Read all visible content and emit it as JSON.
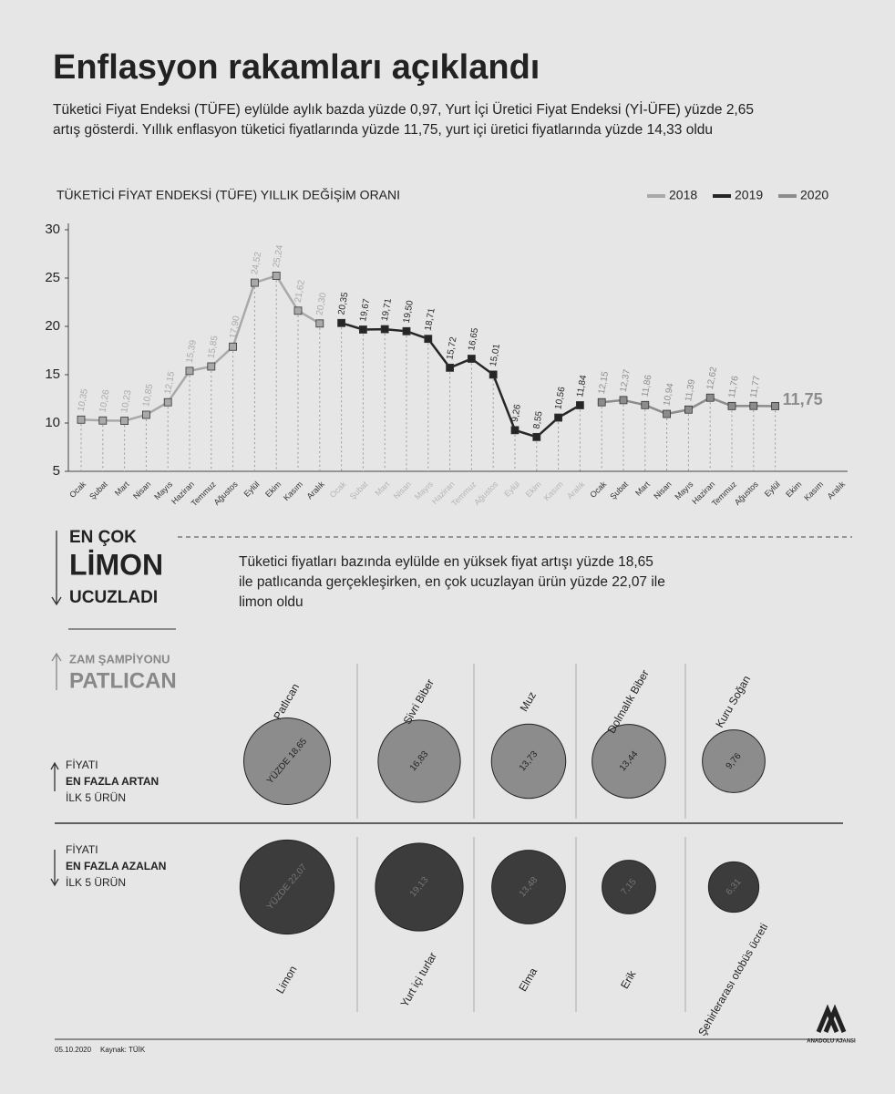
{
  "title": "Enflasyon rakamları açıklandı",
  "subtitle": "Tüketici Fiyat Endeksi (TÜFE) eylülde aylık bazda yüzde 0,97, Yurt İçi Üretici Fiyat Endeksi (Yİ-ÜFE) yüzde 2,65 artış gösterdi. Yıllık enflasyon tüketici fiyatlarında yüzde 11,75, yurt içi üretici fiyatlarında yüzde 14,33 oldu",
  "callout": {
    "line1": "EN ÇOK",
    "line2": "LİMON",
    "line3": "UCUZLADI",
    "text": "Tüketici fiyatları bazında eylülde en yüksek fiyat artışı yüzde 18,65 ile patlıcanda gerçekleşirken, en çok ucuzlayan ürün yüzde 22,07 ile limon oldu",
    "sub1": "ZAM ŞAMPİYONU",
    "sub2": "PATLICAN"
  },
  "footer": {
    "date": "05.10.2020",
    "source": "Kaynak: TÜİK",
    "logo": "ANADOLU AJANSI"
  },
  "chart_data": [
    {
      "type": "line",
      "title": "TÜKETİCİ FİYAT ENDEKSİ (TÜFE) YILLIK DEĞİŞİM ORANI",
      "categories": [
        "Ocak",
        "Şubat",
        "Mart",
        "Nisan",
        "Mayıs",
        "Haziran",
        "Temmuz",
        "Ağustos",
        "Eylül",
        "Ekim",
        "Kasım",
        "Aralık",
        "Ocak",
        "Şubat",
        "Mart",
        "Nisan",
        "Mayıs",
        "Haziran",
        "Temmuz",
        "Ağustos",
        "Eylül",
        "Ekim",
        "Kasım",
        "Aralık",
        "Ocak",
        "Şubat",
        "Mart",
        "Nisan",
        "Mayıs",
        "Haziran",
        "Temmuz",
        "Ağustos",
        "Eylül",
        "Ekim",
        "Kasım",
        "Aralık"
      ],
      "ylim": [
        5,
        30
      ],
      "yticks": [
        5,
        10,
        15,
        20,
        25,
        30
      ],
      "legend": "top-right",
      "series": [
        {
          "name": "2018",
          "color": "#a9a9a9",
          "values": [
            10.35,
            10.26,
            10.23,
            10.85,
            12.15,
            15.39,
            15.85,
            17.9,
            24.52,
            25.24,
            21.62,
            20.3,
            null,
            null,
            null,
            null,
            null,
            null,
            null,
            null,
            null,
            null,
            null,
            null,
            null,
            null,
            null,
            null,
            null,
            null,
            null,
            null,
            null,
            null,
            null,
            null
          ],
          "value_labels": [
            "10,35",
            "10,26",
            "10,23",
            "10,85",
            "12,15",
            "15,39",
            "15,85",
            "17,90",
            "24,52",
            "25,24",
            "21,62",
            "20,30",
            null,
            null,
            null,
            null,
            null,
            null,
            null,
            null,
            null,
            null,
            null,
            null,
            null,
            null,
            null,
            null,
            null,
            null,
            null,
            null,
            null,
            null,
            null,
            null
          ]
        },
        {
          "name": "2019",
          "color": "#262626",
          "values": [
            null,
            null,
            null,
            null,
            null,
            null,
            null,
            null,
            null,
            null,
            null,
            null,
            20.35,
            19.67,
            19.71,
            19.5,
            18.71,
            15.72,
            16.65,
            15.01,
            9.26,
            8.55,
            10.56,
            11.84,
            null,
            null,
            null,
            null,
            null,
            null,
            null,
            null,
            null,
            null,
            null,
            null
          ],
          "value_labels": [
            null,
            null,
            null,
            null,
            null,
            null,
            null,
            null,
            null,
            null,
            null,
            null,
            "20,35",
            "19,67",
            "19,71",
            "19,50",
            "18,71",
            "15,72",
            "16,65",
            "15,01",
            "9,26",
            "8,55",
            "10,56",
            "11,84",
            null,
            null,
            null,
            null,
            null,
            null,
            null,
            null,
            null,
            null,
            null,
            null
          ]
        },
        {
          "name": "2020",
          "color": "#8c8c8c",
          "values": [
            null,
            null,
            null,
            null,
            null,
            null,
            null,
            null,
            null,
            null,
            null,
            null,
            null,
            null,
            null,
            null,
            null,
            null,
            null,
            null,
            null,
            null,
            null,
            null,
            12.15,
            12.37,
            11.86,
            10.94,
            11.39,
            12.62,
            11.76,
            11.77,
            11.75,
            null,
            null,
            null
          ],
          "value_labels": [
            null,
            null,
            null,
            null,
            null,
            null,
            null,
            null,
            null,
            null,
            null,
            null,
            null,
            null,
            null,
            null,
            null,
            null,
            null,
            null,
            null,
            null,
            null,
            null,
            "12,15",
            "12,37",
            "11,86",
            "10,94",
            "11,39",
            "12,62",
            "11,76",
            "11,77",
            "11,75",
            null,
            null,
            null
          ]
        }
      ]
    },
    {
      "type": "bubble",
      "label": [
        "FİYATI",
        "EN FAZLA ARTAN",
        "İLK 5 ÜRÜN"
      ],
      "color": "#8c8c8c",
      "categories": [
        "Patlıcan",
        "Sivri Biber",
        "Muz",
        "Dolmalık Biber",
        "Kuru Soğan"
      ],
      "values": [
        18.65,
        16.83,
        13.73,
        13.44,
        9.76
      ],
      "value_labels": [
        "YÜZDE 18,65",
        "16,83",
        "13,73",
        "13,44",
        "9,76"
      ]
    },
    {
      "type": "bubble",
      "label": [
        "FİYATI",
        "EN FAZLA AZALAN",
        "İLK 5 ÜRÜN"
      ],
      "color": "#3c3c3c",
      "categories": [
        "Limon",
        "Yurt içi turlar",
        "Elma",
        "Erik",
        "Şehirlerarası otobüs ücreti"
      ],
      "values": [
        22.07,
        19.13,
        13.48,
        7.15,
        6.31
      ],
      "value_labels": [
        "YÜZDE 22,07",
        "19,13",
        "13,48",
        "7,15",
        "6,31"
      ]
    }
  ]
}
